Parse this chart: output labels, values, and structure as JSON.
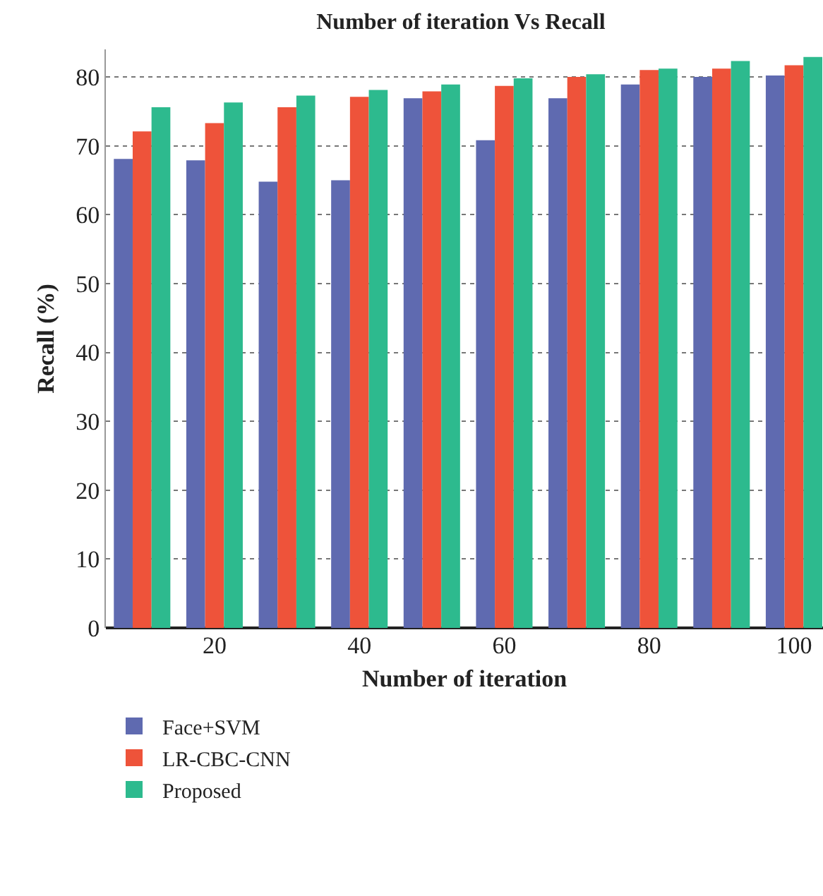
{
  "chart_data": {
    "type": "bar",
    "title": "Number of iteration Vs Recall",
    "xlabel": "Number of iteration",
    "ylabel": "Recall (%)",
    "x": [
      10,
      20,
      30,
      40,
      50,
      60,
      70,
      80,
      90,
      100
    ],
    "series": [
      {
        "name": "Face+SVM",
        "color": "#5f6ab0",
        "values": [
          68.1,
          67.9,
          64.8,
          65.0,
          76.9,
          70.8,
          76.9,
          78.9,
          80.0,
          80.2
        ]
      },
      {
        "name": "LR-CBC-CNN",
        "color": "#ee533a",
        "values": [
          72.1,
          73.3,
          75.6,
          77.1,
          77.9,
          78.7,
          80.0,
          81.0,
          81.2,
          81.7
        ]
      },
      {
        "name": "Proposed",
        "color": "#2dba8e",
        "values": [
          75.6,
          76.3,
          77.3,
          78.1,
          78.9,
          79.8,
          80.4,
          81.2,
          82.3,
          82.9
        ]
      }
    ],
    "xlim": [
      5,
      104
    ],
    "xticks": [
      20,
      40,
      60,
      80,
      100
    ],
    "ylim": [
      0,
      84
    ],
    "yticks": [
      0,
      10,
      20,
      30,
      40,
      50,
      60,
      70,
      80
    ],
    "grid": "y",
    "legend": "bottom left"
  }
}
